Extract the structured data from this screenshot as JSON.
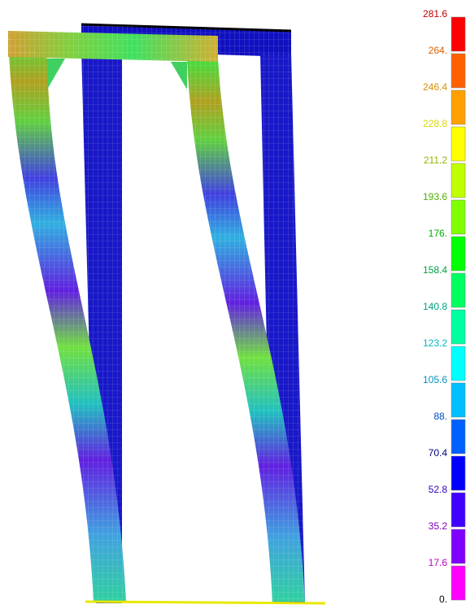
{
  "legend": {
    "levels": [
      {
        "label": "281.6",
        "color": "#c00000"
      },
      {
        "label": "264.",
        "color": "#d86000"
      },
      {
        "label": "246.4",
        "color": "#d89000"
      },
      {
        "label": "228.8",
        "color": "#d8d800"
      },
      {
        "label": "211.2",
        "color": "#90b800"
      },
      {
        "label": "193.6",
        "color": "#50b000"
      },
      {
        "label": "176.",
        "color": "#00b000"
      },
      {
        "label": "158.4",
        "color": "#00a040"
      },
      {
        "label": "140.8",
        "color": "#00a080"
      },
      {
        "label": "123.2",
        "color": "#00b8c0"
      },
      {
        "label": "105.6",
        "color": "#0090c0"
      },
      {
        "label": "88.",
        "color": "#0050c0"
      },
      {
        "label": "70.4",
        "color": "#000080"
      },
      {
        "label": "52.8",
        "color": "#3000c0"
      },
      {
        "label": "35.2",
        "color": "#8000c0"
      },
      {
        "label": "17.6",
        "color": "#c000c0"
      },
      {
        "label": "0.",
        "color": "#000000"
      }
    ],
    "swatches": [
      "#ff0000",
      "#ff6000",
      "#ffa000",
      "#ffff00",
      "#c0ff00",
      "#80ff00",
      "#00ff00",
      "#00ff60",
      "#00ffa0",
      "#00ffff",
      "#00c0ff",
      "#0060ff",
      "#0000ff",
      "#4000ff",
      "#8000ff",
      "#ff00ff"
    ]
  }
}
